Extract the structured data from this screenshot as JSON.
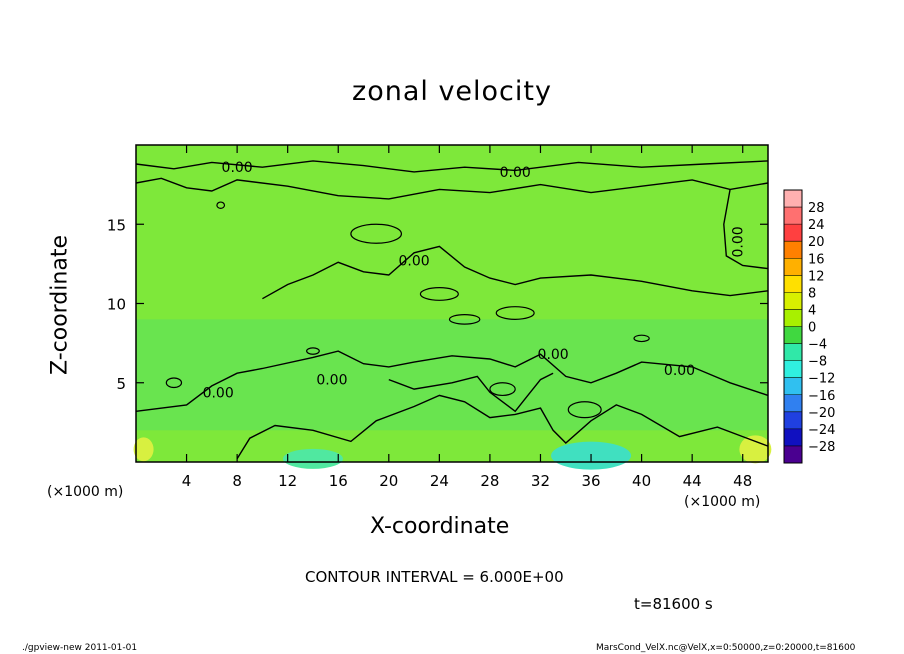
{
  "header": {
    "title": "zonal velocity"
  },
  "footer": {
    "contour_interval": "CONTOUR INTERVAL = 6.000E+00",
    "time": "t=81600 s",
    "program": "./gpview-new  2011-01-01",
    "source": "MarsCond_VelX.nc@VelX,x=0:50000,z=0:20000,t=81600"
  },
  "chart_data": {
    "type": "heatmap",
    "title": "zonal velocity",
    "xlabel": "X-coordinate",
    "ylabel": "Z-coordinate",
    "x_unit_label": "(×1000 m)",
    "x_ticks": [
      4,
      8,
      12,
      16,
      20,
      24,
      28,
      32,
      36,
      40,
      44,
      48
    ],
    "y_ticks": [
      5,
      10,
      15
    ],
    "xlim": [
      0,
      50
    ],
    "ylim": [
      0,
      20
    ],
    "contour_labels": [
      "0.00",
      "0.00",
      "0.00",
      "0.00",
      "0.00",
      "0.00",
      "0.00",
      "0.00"
    ],
    "colorbar": {
      "levels": [
        28,
        24,
        20,
        16,
        12,
        8,
        4,
        0,
        -4,
        -8,
        -12,
        -16,
        -20,
        -24,
        -28
      ],
      "colors": [
        "#ffb0b0",
        "#ff7070",
        "#ff4040",
        "#ff8000",
        "#ffb000",
        "#ffe000",
        "#d8f000",
        "#a8f000",
        "#40d840",
        "#30e8a8",
        "#30f0e0",
        "#30c0f0",
        "#3080f0",
        "#2040e0",
        "#1010c0",
        "#4a0090"
      ]
    }
  }
}
